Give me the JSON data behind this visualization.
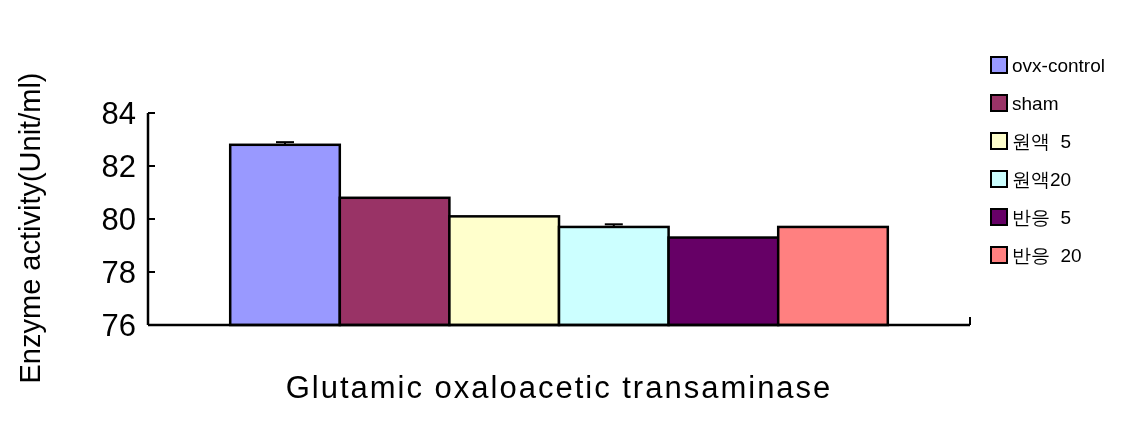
{
  "chart_data": {
    "type": "bar",
    "ylabel": "Enzyme activity(Unit/ml)",
    "categories": [
      "Glutamic oxaloacetic transaminase"
    ],
    "ylim": [
      76,
      84
    ],
    "yticks": [
      76,
      78,
      80,
      82,
      84
    ],
    "grid": false,
    "legend": "right",
    "series": [
      {
        "name": "ovx-control",
        "color": "#9999ff",
        "values": [
          82.8
        ],
        "errors": [
          0.1
        ]
      },
      {
        "name": "sham",
        "color": "#993366",
        "values": [
          80.8
        ],
        "errors": [
          null
        ]
      },
      {
        "name": "원액  5",
        "color": "#ffffcc",
        "values": [
          80.1
        ],
        "errors": [
          null
        ]
      },
      {
        "name": "원액20",
        "color": "#ccffff",
        "values": [
          79.7
        ],
        "errors": [
          0.1
        ]
      },
      {
        "name": "반응  5",
        "color": "#660066",
        "values": [
          79.3
        ],
        "errors": [
          null
        ]
      },
      {
        "name": "반응  20",
        "color": "#ff8080",
        "values": [
          79.7
        ],
        "errors": [
          null
        ]
      }
    ]
  }
}
